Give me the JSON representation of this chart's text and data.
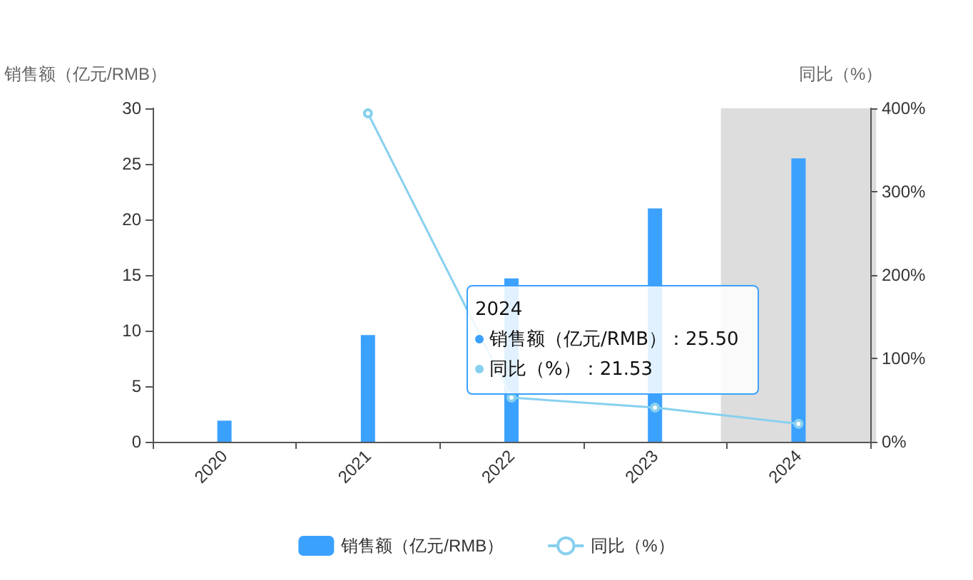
{
  "chart_data": {
    "type": "bar",
    "xlabel": null,
    "ylabel": "销售额（亿元/RMB）",
    "y2label": "同比（%）",
    "categories": [
      "2020",
      "2021",
      "2022",
      "2023",
      "2024"
    ],
    "series": [
      {
        "name": "销售额（亿元/RMB）",
        "color": "#3ba1ff",
        "values": [
          1.9,
          9.6,
          14.7,
          21.0,
          25.5
        ]
      },
      {
        "name": "同比（%）",
        "type": "line",
        "axis": "y2",
        "color": "#87d0ee",
        "marker": "circle",
        "values": [
          null,
          394,
          53,
          41,
          21.53
        ]
      }
    ],
    "ylim": [
      0,
      30
    ],
    "yticks": [
      0,
      5,
      10,
      15,
      20,
      25,
      30
    ],
    "y2lim": [
      0,
      400
    ],
    "y2ticks": [
      {
        "value": 0,
        "label": "0%"
      },
      {
        "value": 100,
        "label": "100%"
      },
      {
        "value": 200,
        "label": "200%"
      },
      {
        "value": 300,
        "label": "300%"
      },
      {
        "value": 400,
        "label": "400%"
      }
    ],
    "bands": [
      {
        "axis": "x",
        "from": "2024",
        "to": "2024",
        "color": "#dddddd"
      }
    ],
    "annotations": [
      "2024",
      "销售额（亿元/RMB）：25.50",
      "同比（%）：21.53"
    ],
    "grid": false,
    "legend": "bottom"
  }
}
